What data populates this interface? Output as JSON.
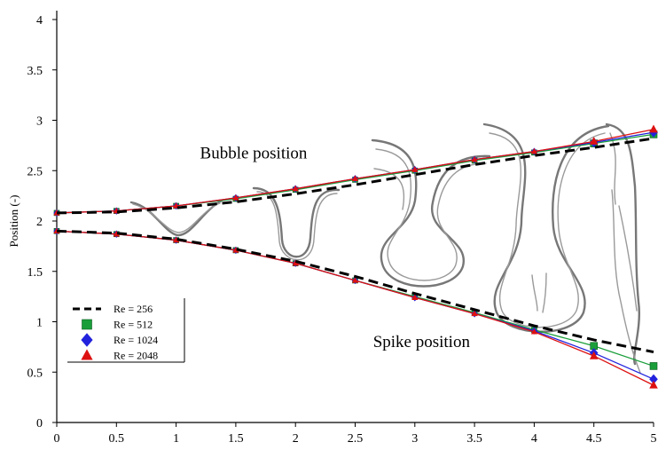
{
  "chart_data": {
    "type": "line",
    "xlabel": "",
    "ylabel": "Position  (-)",
    "xlim": [
      0,
      5
    ],
    "ylim": [
      0,
      4
    ],
    "x_ticks": [
      "0",
      "0.5",
      "1",
      "1.5",
      "2",
      "2.5",
      "3",
      "3.5",
      "4",
      "4.5",
      "5"
    ],
    "y_ticks": [
      "0",
      "0.5",
      "1",
      "1.5",
      "2",
      "2.5",
      "3",
      "3.5",
      "4"
    ],
    "grid": false,
    "legend_position": "bottom-left",
    "annotations": [
      {
        "text": "Bubble position",
        "x": 1.2,
        "y": 2.62
      },
      {
        "text": "Spike position",
        "x": 2.65,
        "y": 0.75
      }
    ],
    "x": [
      0,
      0.5,
      1,
      1.5,
      2,
      2.5,
      3,
      3.5,
      4,
      4.5,
      5
    ],
    "series": [
      {
        "name": "Re = 256",
        "style": "dashed",
        "color": "#000000",
        "marker": "none",
        "bubble": [
          2.08,
          2.09,
          2.13,
          2.19,
          2.27,
          2.36,
          2.46,
          2.56,
          2.65,
          2.73,
          2.82
        ],
        "spike": [
          1.9,
          1.88,
          1.82,
          1.72,
          1.6,
          1.45,
          1.28,
          1.12,
          0.96,
          0.82,
          0.7
        ]
      },
      {
        "name": "Re = 512",
        "style": "solid",
        "color": "#1a9e3a",
        "marker": "square",
        "bubble": [
          2.08,
          2.1,
          2.15,
          2.22,
          2.31,
          2.41,
          2.5,
          2.6,
          2.68,
          2.77,
          2.86
        ],
        "spike": [
          1.9,
          1.87,
          1.81,
          1.71,
          1.58,
          1.41,
          1.25,
          1.09,
          0.92,
          0.76,
          0.56
        ]
      },
      {
        "name": "Re = 1024",
        "style": "solid",
        "color": "#2222dd",
        "marker": "diamond",
        "bubble": [
          2.08,
          2.1,
          2.15,
          2.23,
          2.32,
          2.42,
          2.51,
          2.61,
          2.69,
          2.78,
          2.88
        ],
        "spike": [
          1.9,
          1.87,
          1.81,
          1.71,
          1.58,
          1.41,
          1.24,
          1.08,
          0.91,
          0.69,
          0.43
        ]
      },
      {
        "name": "Re = 2048",
        "style": "solid",
        "color": "#dd1111",
        "marker": "triangle",
        "bubble": [
          2.08,
          2.1,
          2.15,
          2.23,
          2.32,
          2.42,
          2.51,
          2.61,
          2.69,
          2.79,
          2.91
        ],
        "spike": [
          1.9,
          1.87,
          1.81,
          1.71,
          1.58,
          1.41,
          1.24,
          1.08,
          0.9,
          0.66,
          0.37
        ]
      }
    ],
    "insets": [
      "interface-t1",
      "interface-t2",
      "interface-t3",
      "interface-t4",
      "interface-t5"
    ]
  }
}
